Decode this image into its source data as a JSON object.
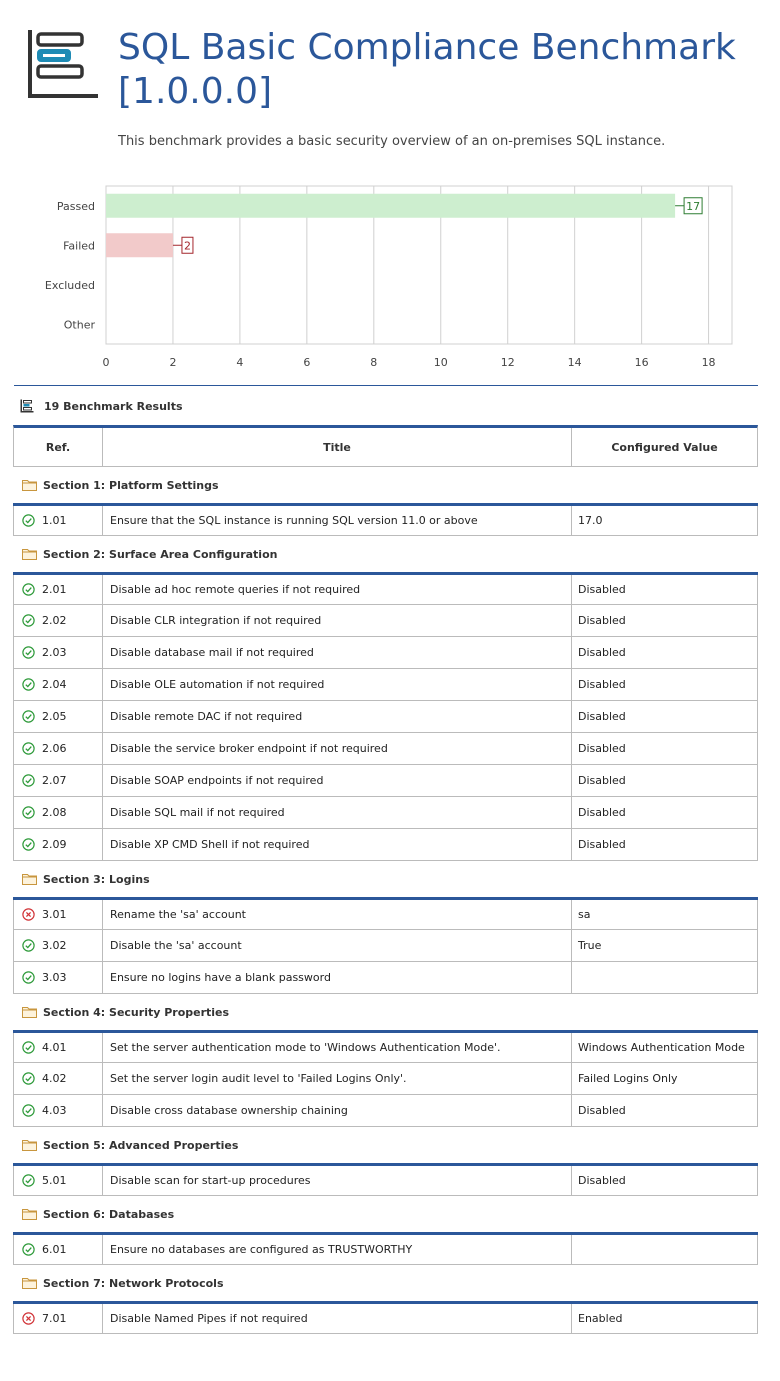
{
  "header": {
    "title": "SQL Basic Compliance Benchmark [1.0.0.0]",
    "subtitle": "This benchmark provides a basic security overview of an on-premises SQL instance."
  },
  "colors": {
    "accent": "#2b579a",
    "passed_bar": "#cdeecf",
    "failed_bar": "#f2caca",
    "passed_icon": "#2e9a3a",
    "failed_icon": "#d13438",
    "folder_icon": "#c8963e"
  },
  "chart_data": {
    "type": "bar",
    "orientation": "horizontal",
    "categories": [
      "Passed",
      "Failed",
      "Excluded",
      "Other"
    ],
    "values": [
      17,
      2,
      0,
      0
    ],
    "data_labels": [
      "17",
      "2",
      "",
      ""
    ],
    "xlim": [
      0,
      18.7
    ],
    "xticks": [
      0,
      2,
      4,
      6,
      8,
      10,
      12,
      14,
      16,
      18
    ],
    "grid": true,
    "colors": [
      "#cdeecf",
      "#f2caca",
      "#cccccc",
      "#cccccc"
    ],
    "label_colors": [
      "#2e7d32",
      "#a4262c",
      "#666666",
      "#666666"
    ]
  },
  "results": {
    "icon": "list-icon",
    "label": "19 Benchmark Results"
  },
  "table": {
    "headers": {
      "ref": "Ref.",
      "title": "Title",
      "value": "Configured Value"
    },
    "sections": [
      {
        "label": "Section 1: Platform Settings",
        "rows": [
          {
            "status": "passed",
            "ref": "1.01",
            "title": "Ensure that the SQL instance is running SQL version 11.0 or above",
            "value": "17.0"
          }
        ]
      },
      {
        "label": "Section 2: Surface Area Configuration",
        "rows": [
          {
            "status": "passed",
            "ref": "2.01",
            "title": "Disable ad hoc remote queries if not required",
            "value": "Disabled"
          },
          {
            "status": "passed",
            "ref": "2.02",
            "title": "Disable CLR integration if not required",
            "value": "Disabled"
          },
          {
            "status": "passed",
            "ref": "2.03",
            "title": "Disable database mail if not required",
            "value": "Disabled"
          },
          {
            "status": "passed",
            "ref": "2.04",
            "title": "Disable OLE automation if not required",
            "value": "Disabled"
          },
          {
            "status": "passed",
            "ref": "2.05",
            "title": "Disable remote DAC if not required",
            "value": "Disabled"
          },
          {
            "status": "passed",
            "ref": "2.06",
            "title": "Disable the service broker endpoint if not required",
            "value": "Disabled"
          },
          {
            "status": "passed",
            "ref": "2.07",
            "title": "Disable SOAP endpoints if not required",
            "value": "Disabled"
          },
          {
            "status": "passed",
            "ref": "2.08",
            "title": "Disable SQL mail if not required",
            "value": "Disabled"
          },
          {
            "status": "passed",
            "ref": "2.09",
            "title": "Disable XP CMD Shell if not required",
            "value": "Disabled"
          }
        ]
      },
      {
        "label": "Section 3: Logins",
        "rows": [
          {
            "status": "failed",
            "ref": "3.01",
            "title": "Rename the 'sa' account",
            "value": "sa"
          },
          {
            "status": "passed",
            "ref": "3.02",
            "title": "Disable the 'sa' account",
            "value": "True"
          },
          {
            "status": "passed",
            "ref": "3.03",
            "title": "Ensure no logins have a blank password",
            "value": ""
          }
        ]
      },
      {
        "label": "Section 4: Security Properties",
        "rows": [
          {
            "status": "passed",
            "ref": "4.01",
            "title": "Set the server authentication mode to 'Windows Authentication Mode'.",
            "value": "Windows Authentication Mode"
          },
          {
            "status": "passed",
            "ref": "4.02",
            "title": "Set the server login audit level to 'Failed Logins Only'.",
            "value": "Failed Logins Only"
          },
          {
            "status": "passed",
            "ref": "4.03",
            "title": "Disable cross database ownership chaining",
            "value": "Disabled"
          }
        ]
      },
      {
        "label": "Section 5: Advanced Properties",
        "rows": [
          {
            "status": "passed",
            "ref": "5.01",
            "title": "Disable scan for start-up procedures",
            "value": "Disabled"
          }
        ]
      },
      {
        "label": "Section 6: Databases",
        "rows": [
          {
            "status": "passed",
            "ref": "6.01",
            "title": "Ensure no databases are configured as TRUSTWORTHY",
            "value": ""
          }
        ]
      },
      {
        "label": "Section 7: Network Protocols",
        "rows": [
          {
            "status": "failed",
            "ref": "7.01",
            "title": "Disable Named Pipes if not required",
            "value": "Enabled"
          }
        ]
      }
    ]
  }
}
